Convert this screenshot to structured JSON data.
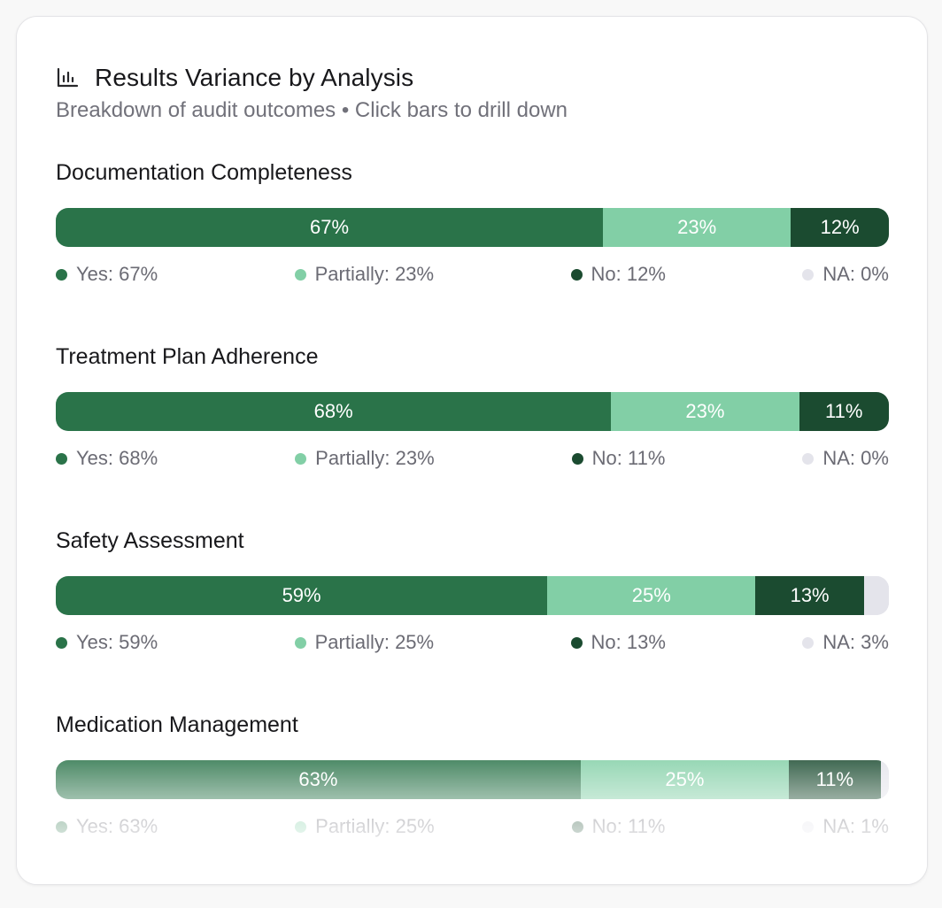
{
  "header": {
    "title": "Results Variance by Analysis",
    "subtitle": "Breakdown of audit outcomes • Click bars to drill down",
    "icon": "bar-chart-icon"
  },
  "colors": {
    "yes": "#2a7349",
    "partially": "#82cfa6",
    "no": "#1b4b30",
    "na": "#e4e4eb"
  },
  "chart_data": {
    "type": "bar",
    "orientation": "horizontal-stacked-100",
    "title": "Results Variance by Analysis",
    "subtitle": "Breakdown of audit outcomes • Click bars to drill down",
    "categories": [
      "Documentation Completeness",
      "Treatment Plan Adherence",
      "Safety Assessment",
      "Medication Management"
    ],
    "series": [
      {
        "name": "Yes",
        "key": "yes",
        "values": [
          67,
          68,
          59,
          63
        ]
      },
      {
        "name": "Partially",
        "key": "partially",
        "values": [
          23,
          23,
          25,
          25
        ]
      },
      {
        "name": "No",
        "key": "no",
        "values": [
          12,
          11,
          13,
          11
        ]
      },
      {
        "name": "NA",
        "key": "na",
        "values": [
          0,
          0,
          3,
          1
        ]
      }
    ],
    "unit": "%",
    "legend_labels": [
      [
        "Yes: 67%",
        "Partially: 23%",
        "No: 12%",
        "NA: 0%"
      ],
      [
        "Yes: 68%",
        "Partially: 23%",
        "No: 11%",
        "NA: 0%"
      ],
      [
        "Yes: 59%",
        "Partially: 25%",
        "No: 13%",
        "NA: 3%"
      ],
      [
        "Yes: 63%",
        "Partially: 25%",
        "No: 11%",
        "NA: 1%"
      ]
    ]
  }
}
